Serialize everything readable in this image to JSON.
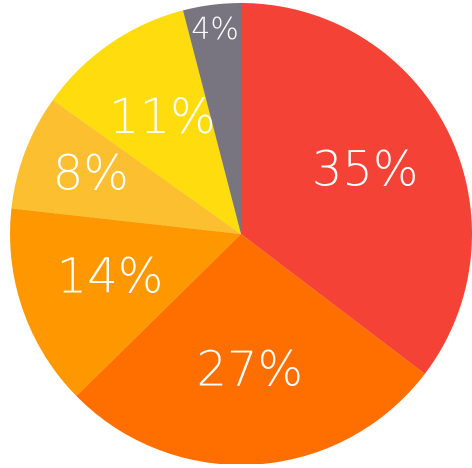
{
  "chart_data": {
    "type": "pie",
    "values": [
      35,
      27,
      14,
      8,
      11,
      4
    ],
    "value_labels": [
      "35%",
      "27%",
      "14%",
      "8%",
      "11%",
      "4%"
    ],
    "colors": [
      "#f44336",
      "#ff6f00",
      "#ff9800",
      "#fbbf2f",
      "#fedc0e",
      "#787580"
    ]
  }
}
